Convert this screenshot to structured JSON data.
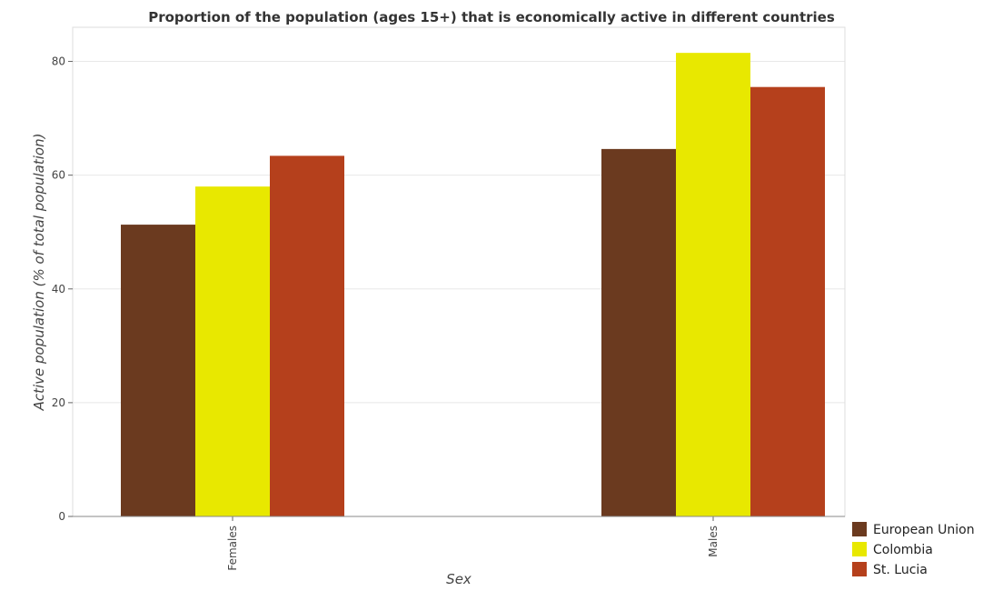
{
  "chart_data": {
    "type": "bar",
    "title": "Proportion of the population (ages 15+) that is economically active in different countries",
    "xlabel": "Sex",
    "ylabel": "Active population (% of total population)",
    "categories": [
      "Females",
      "Males"
    ],
    "series": [
      {
        "name": "European Union",
        "color": "#6b3a1f",
        "values": [
          51.3,
          64.6
        ]
      },
      {
        "name": "Colombia",
        "color": "#e8e800",
        "values": [
          58.0,
          81.5
        ]
      },
      {
        "name": "St. Lucia",
        "color": "#b5401c",
        "values": [
          63.4,
          75.5
        ]
      }
    ],
    "yticks": [
      0,
      20,
      40,
      60,
      80
    ],
    "ylim": [
      0,
      86
    ],
    "grid": true,
    "legend": "bottom-right"
  }
}
